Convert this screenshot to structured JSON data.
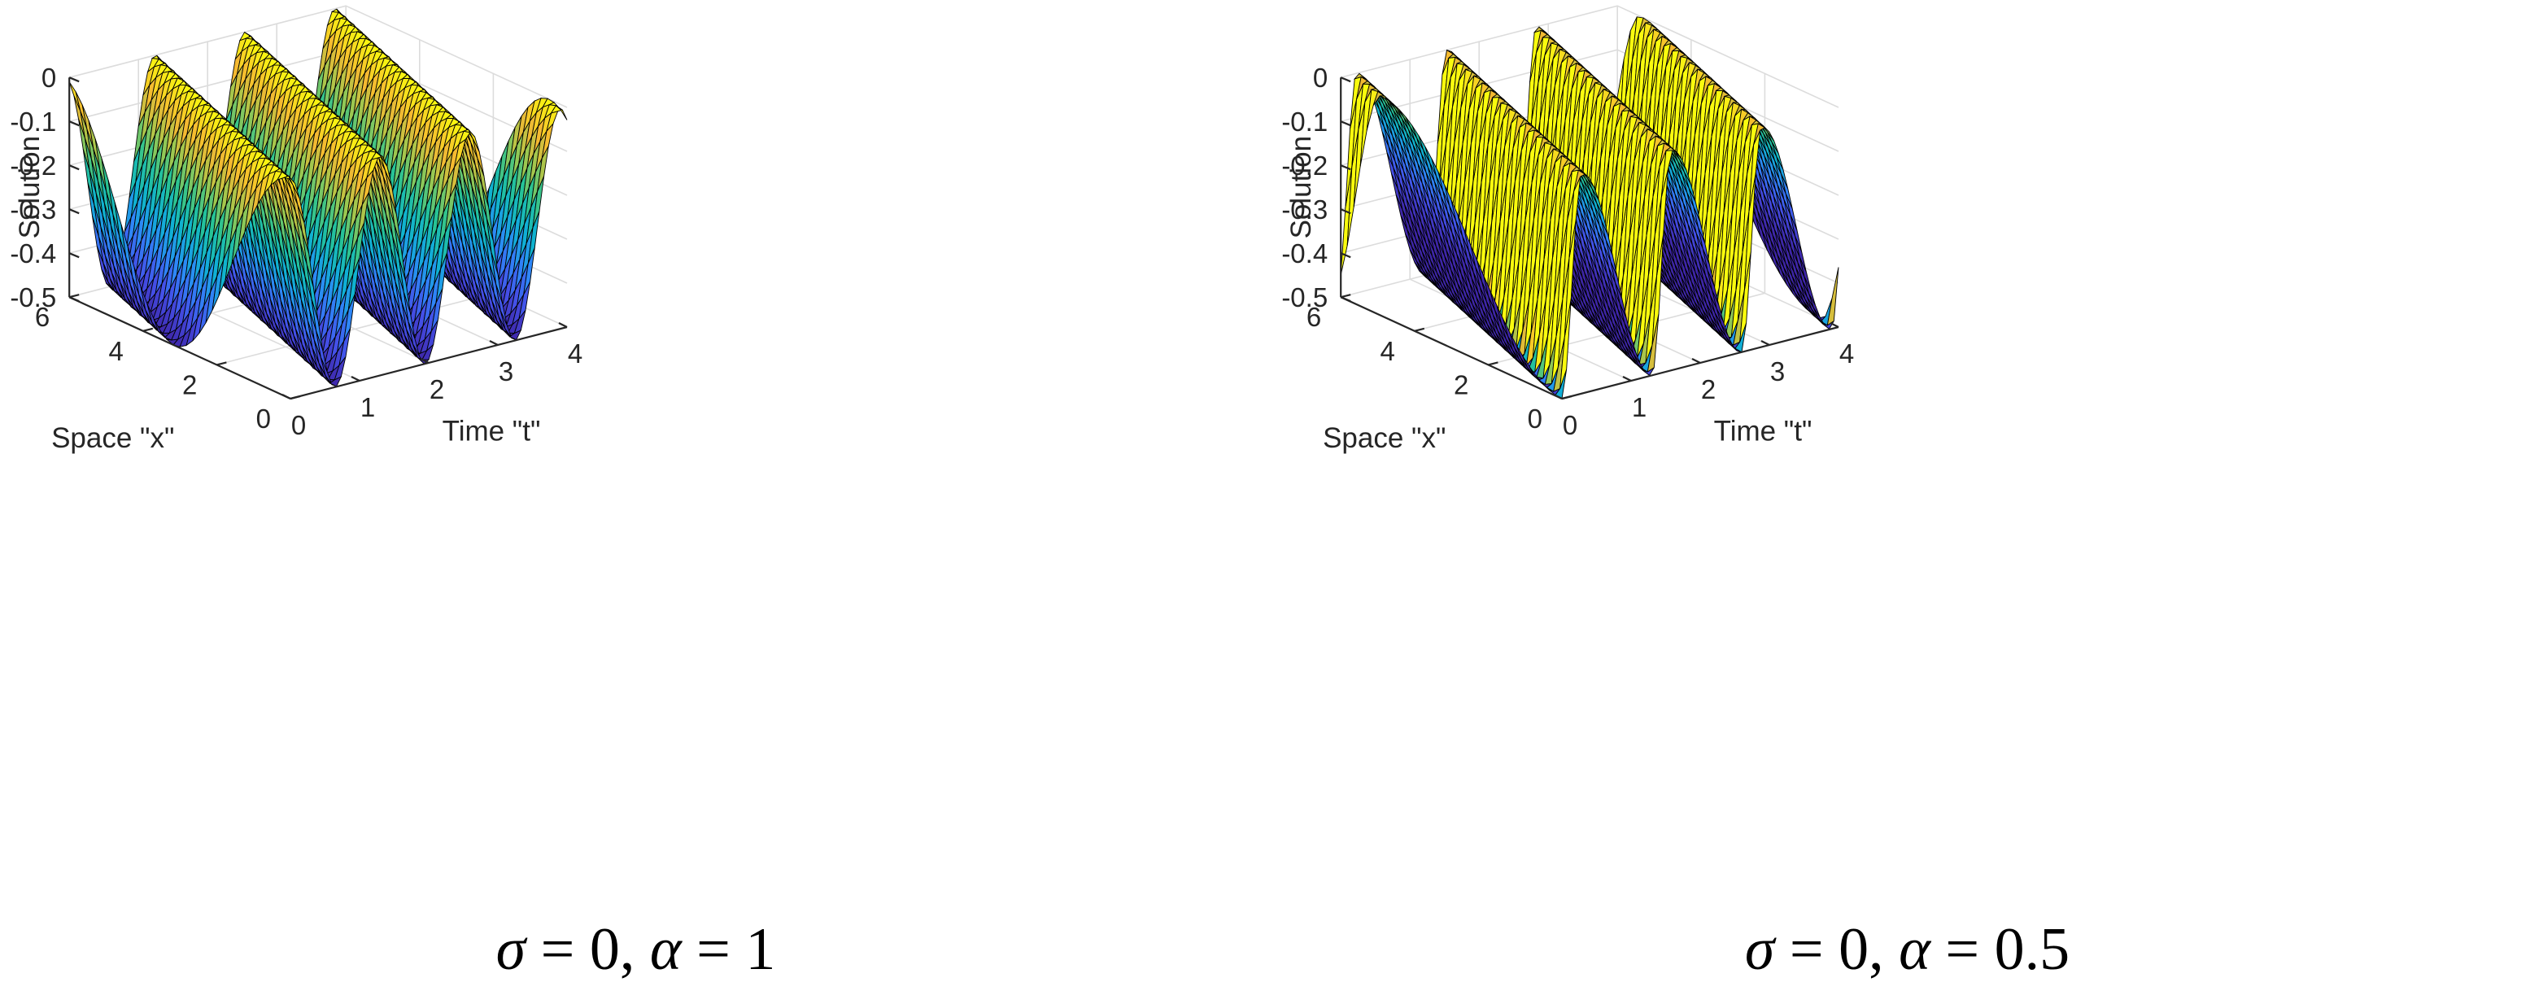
{
  "chart_data": [
    {
      "type": "surface",
      "title": "",
      "caption": {
        "sigma_symbol": "σ",
        "sigma_rel": " = 0, ",
        "alpha_symbol": "α",
        "alpha_rel": " = 1"
      },
      "xlabel": "Time \"t\"",
      "ylabel": "Space \"x\"",
      "zlabel": "Solution",
      "xlim": [
        0,
        4
      ],
      "ylim": [
        0,
        6
      ],
      "zlim": [
        -0.5,
        0
      ],
      "x_ticks": [
        "0",
        "1",
        "2",
        "3",
        "4"
      ],
      "y_ticks": [
        "0",
        "2",
        "4",
        "6"
      ],
      "z_ticks": [
        "0",
        "-0.1",
        "-0.2",
        "-0.3",
        "-0.4",
        "-0.5"
      ],
      "colormap": "parula",
      "surface": {
        "ridges": 4,
        "min": -0.5,
        "max": 0,
        "shape": "smooth traveling cosine waves along t"
      }
    },
    {
      "type": "surface",
      "title": "",
      "caption": {
        "sigma_symbol": "σ",
        "sigma_rel": " = 0, ",
        "alpha_symbol": "α",
        "alpha_rel": " = 0.5"
      },
      "xlabel": "Time \"t\"",
      "ylabel": "Space \"x\"",
      "zlabel": "Solution",
      "xlim": [
        0,
        4
      ],
      "ylim": [
        0,
        6
      ],
      "zlim": [
        -0.5,
        0
      ],
      "x_ticks": [
        "0",
        "1",
        "2",
        "3",
        "4"
      ],
      "y_ticks": [
        "0",
        "2",
        "4",
        "6"
      ],
      "z_ticks": [
        "0",
        "-0.1",
        "-0.2",
        "-0.3",
        "-0.4",
        "-0.5"
      ],
      "colormap": "parula",
      "surface": {
        "ridges": 4,
        "min": -0.5,
        "max": 0,
        "shape": "asymmetric sawtooth-like waves with sharp fronts"
      }
    }
  ],
  "colors": {
    "axis": "#262626",
    "grid": "#dcdcdc",
    "edge": "#000000",
    "parula": [
      "#3e26a8",
      "#4450e8",
      "#2e87f8",
      "#0fb1d3",
      "#26c395",
      "#9bc850",
      "#f5b931",
      "#f9fb0e"
    ]
  }
}
